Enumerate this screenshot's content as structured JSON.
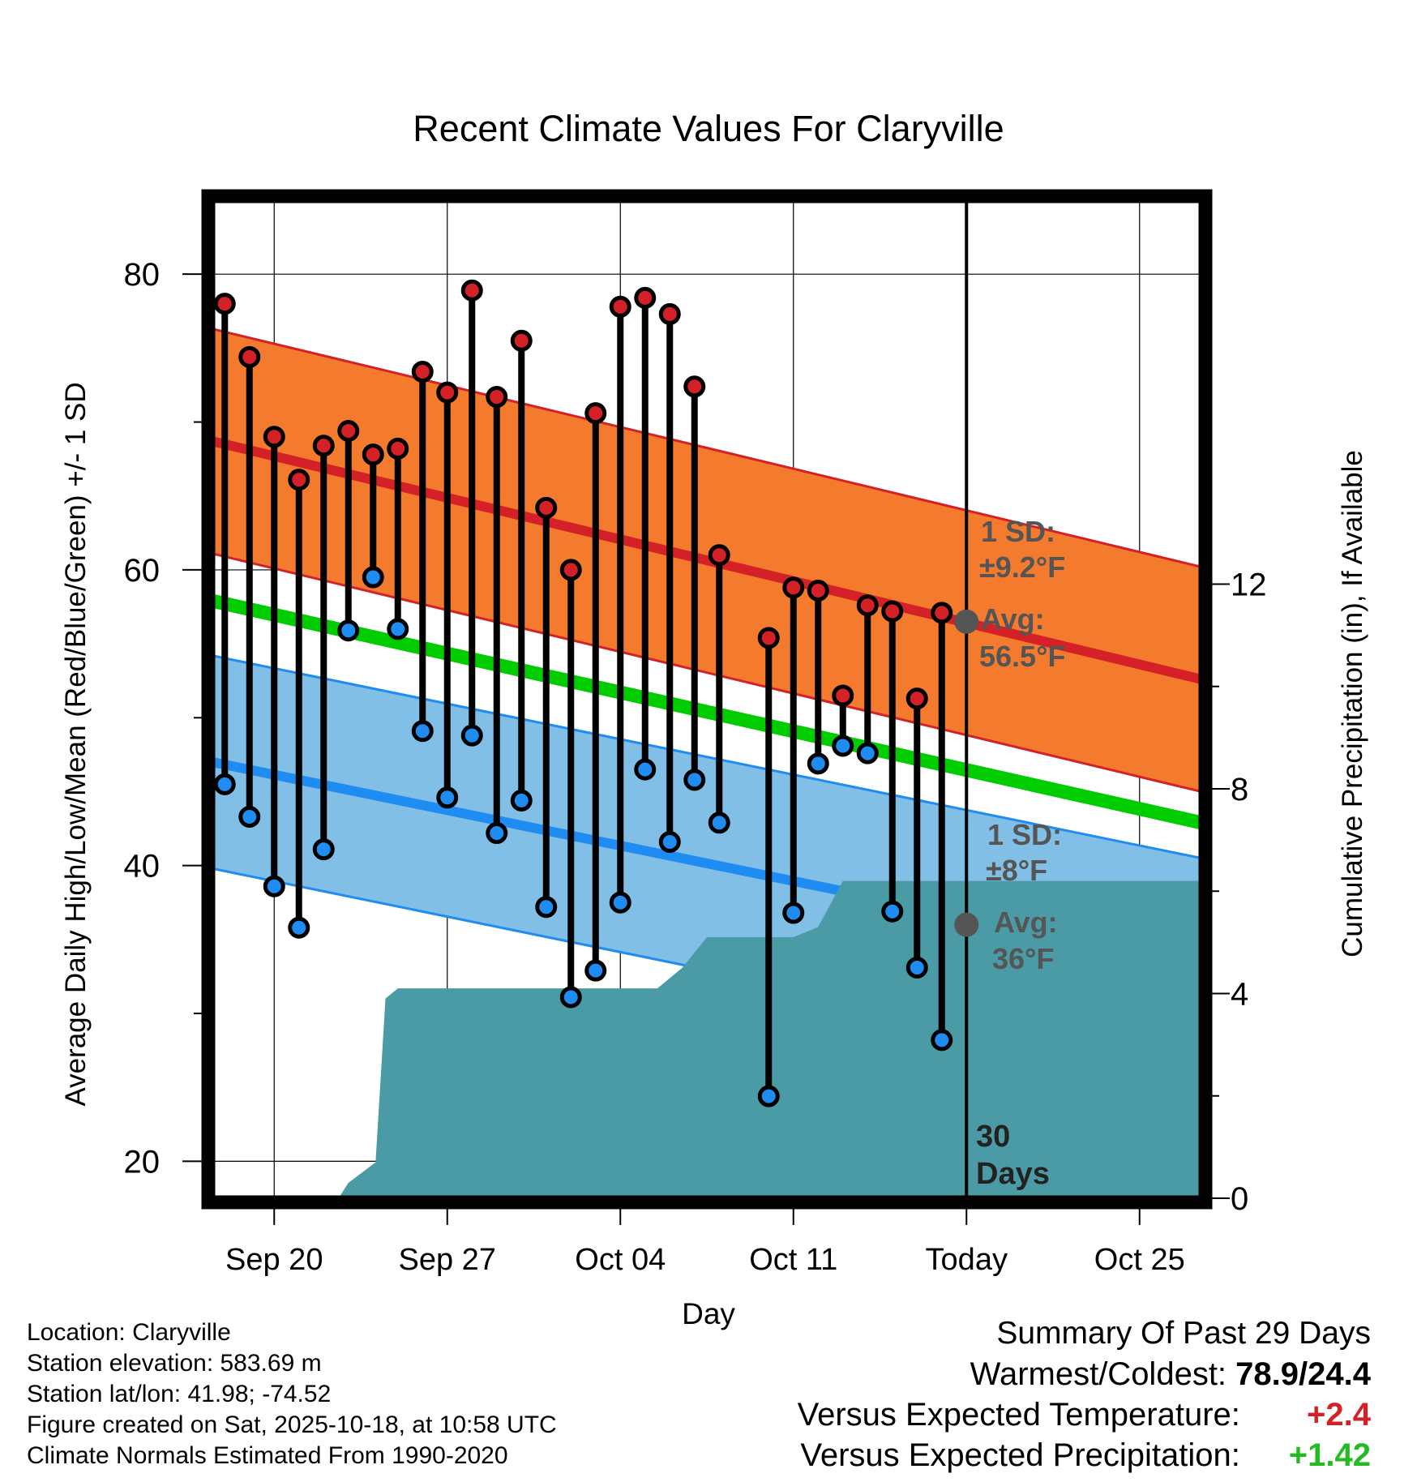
{
  "chart_data": {
    "type": "line",
    "title": "Recent Climate Values For Claryville",
    "xlabel": "Day",
    "ylabel": "Average Daily High/Low/Mean (Red/Blue/Green) +/- 1 SD",
    "y2label": "Cumulative Precipitation (in), If Available",
    "ylim": [
      17.5,
      85
    ],
    "y2lim": [
      0,
      19.5
    ],
    "xlim": [
      -0.5,
      39.5
    ],
    "x_ticks": [
      {
        "day": 2,
        "label": "Sep 20"
      },
      {
        "day": 9,
        "label": "Sep 27"
      },
      {
        "day": 16,
        "label": "Oct 04"
      },
      {
        "day": 23,
        "label": "Oct 11"
      },
      {
        "day": 30,
        "label": "Today"
      },
      {
        "day": 37,
        "label": "Oct 25"
      }
    ],
    "y_ticks": [
      20,
      40,
      60,
      80
    ],
    "y2_ticks": [
      0,
      4,
      8,
      12
    ],
    "grid": true,
    "today_day": 30,
    "days_label": [
      "30",
      "Days"
    ],
    "normal_high": {
      "start": 68.7,
      "end": 52.6,
      "sd": 7.6
    },
    "normal_low": {
      "start": 47.0,
      "end": 33.3,
      "sd": 7.2
    },
    "normal_mean": {
      "start": 57.9,
      "end": 42.9
    },
    "high_annotation": {
      "sd_label": "1 SD:",
      "sd_value": "±9.2°F",
      "avg_label": "Avg:",
      "avg_value": "56.5°F",
      "marker_value": 56.5
    },
    "low_annotation": {
      "sd_label": "1 SD:",
      "sd_value": "±8°F",
      "avg_label": "Avg:",
      "avg_value": "36°F",
      "marker_value": 36.0
    },
    "observations": [
      {
        "day": 0,
        "high": 78.0,
        "low": 45.5
      },
      {
        "day": 1,
        "high": 74.4,
        "low": 43.3
      },
      {
        "day": 2,
        "high": 69.0,
        "low": 38.6
      },
      {
        "day": 3,
        "high": 66.1,
        "low": 35.8
      },
      {
        "day": 4,
        "high": 68.4,
        "low": 41.1
      },
      {
        "day": 5,
        "high": 69.4,
        "low": 55.9
      },
      {
        "day": 6,
        "high": 67.8,
        "low": 59.5
      },
      {
        "day": 7,
        "high": 68.2,
        "low": 56.0
      },
      {
        "day": 8,
        "high": 73.4,
        "low": 49.1
      },
      {
        "day": 9,
        "high": 72.0,
        "low": 44.6
      },
      {
        "day": 10,
        "high": 78.9,
        "low": 48.8
      },
      {
        "day": 11,
        "high": 71.7,
        "low": 42.2
      },
      {
        "day": 12,
        "high": 75.5,
        "low": 44.4
      },
      {
        "day": 13,
        "high": 64.2,
        "low": 37.2
      },
      {
        "day": 14,
        "high": 60.0,
        "low": 31.1
      },
      {
        "day": 15,
        "high": 70.6,
        "low": 32.9
      },
      {
        "day": 16,
        "high": 77.8,
        "low": 37.5
      },
      {
        "day": 17,
        "high": 78.4,
        "low": 46.5
      },
      {
        "day": 18,
        "high": 77.3,
        "low": 41.6
      },
      {
        "day": 19,
        "high": 72.4,
        "low": 45.8
      },
      {
        "day": 20,
        "high": 61.0,
        "low": 42.9
      },
      {
        "day": 22,
        "high": 55.4,
        "low": 24.4
      },
      {
        "day": 23,
        "high": 58.8,
        "low": 36.8
      },
      {
        "day": 24,
        "high": 58.6,
        "low": 46.9
      },
      {
        "day": 25,
        "high": 51.5,
        "low": 48.1
      },
      {
        "day": 26,
        "high": 57.6,
        "low": 47.6
      },
      {
        "day": 27,
        "high": 57.2,
        "low": 36.9
      },
      {
        "day": 28,
        "high": 51.3,
        "low": 33.1
      },
      {
        "day": 29,
        "high": 57.1,
        "low": 28.2
      }
    ],
    "precipitation_cumulative": [
      {
        "day": 4.6,
        "value": 0.0
      },
      {
        "day": 5.0,
        "value": 0.3
      },
      {
        "day": 6.1,
        "value": 0.7
      },
      {
        "day": 6.5,
        "value": 3.9
      },
      {
        "day": 7.0,
        "value": 4.1
      },
      {
        "day": 17.5,
        "value": 4.1
      },
      {
        "day": 18.5,
        "value": 4.5
      },
      {
        "day": 19.5,
        "value": 5.1
      },
      {
        "day": 23.0,
        "value": 5.1
      },
      {
        "day": 24.0,
        "value": 5.3
      },
      {
        "day": 25.0,
        "value": 6.2
      },
      {
        "day": 39.5,
        "value": 6.2
      }
    ],
    "colors": {
      "high_band": "#f47a2e",
      "high_line": "#d42127",
      "low_band": "#82bfe6",
      "low_line": "#1e8cf0",
      "mean_line": "#00cc00",
      "precip": "#4a9ba5",
      "high_marker": "#d42127",
      "low_marker": "#1e8cf0",
      "annotation": "#555555"
    }
  },
  "info": {
    "location": "Location: Claryville",
    "elevation": "Station elevation: 583.69 m",
    "latlon": "Station lat/lon: 41.98; -74.52",
    "created": "Figure created on Sat, 2025-10-18, at 10:58 UTC",
    "normals": "Climate Normals Estimated From 1990-2020"
  },
  "summary": {
    "title": "Summary Of Past 29 Days",
    "warm_cold_label": "Warmest/Coldest:",
    "warm_cold_value": "78.9/24.4",
    "temp_label": "Versus Expected Temperature:",
    "temp_value": "+2.4",
    "temp_color": "#d42127",
    "precip_label": "Versus Expected Precipitation:",
    "precip_value": "+1.42",
    "precip_color": "#22bb22"
  }
}
